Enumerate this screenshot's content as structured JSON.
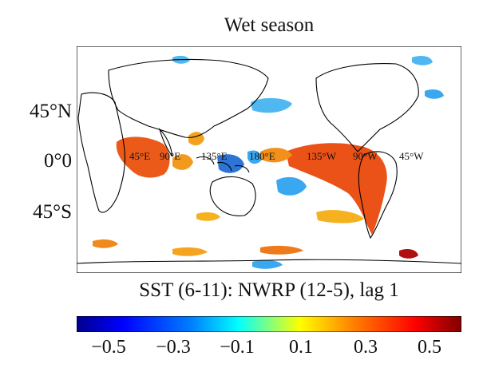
{
  "title": "Wet season",
  "subtitle": "SST (6-11): NWRP (12-5), lag 1",
  "latitude_labels": [
    "45°N",
    "0°0",
    "45°S"
  ],
  "longitude_labels": [
    "45°E",
    "90°E",
    "135°E",
    "180°E",
    "135°W",
    "90°W",
    "45°W"
  ],
  "colorbar": {
    "ticks": [
      "−0.5",
      "−0.3",
      "−0.1",
      "0.1",
      "0.3",
      "0.5"
    ],
    "range": [
      -0.6,
      0.6
    ],
    "colormap": [
      "#00008f",
      "#0000ff",
      "#0080ff",
      "#00ffff",
      "#80ff80",
      "#ffff00",
      "#ff8000",
      "#ff0000",
      "#800000"
    ]
  },
  "colors": {
    "land_outline": "#000000",
    "positive": "#f06020",
    "negative": "#3aa8f0"
  }
}
